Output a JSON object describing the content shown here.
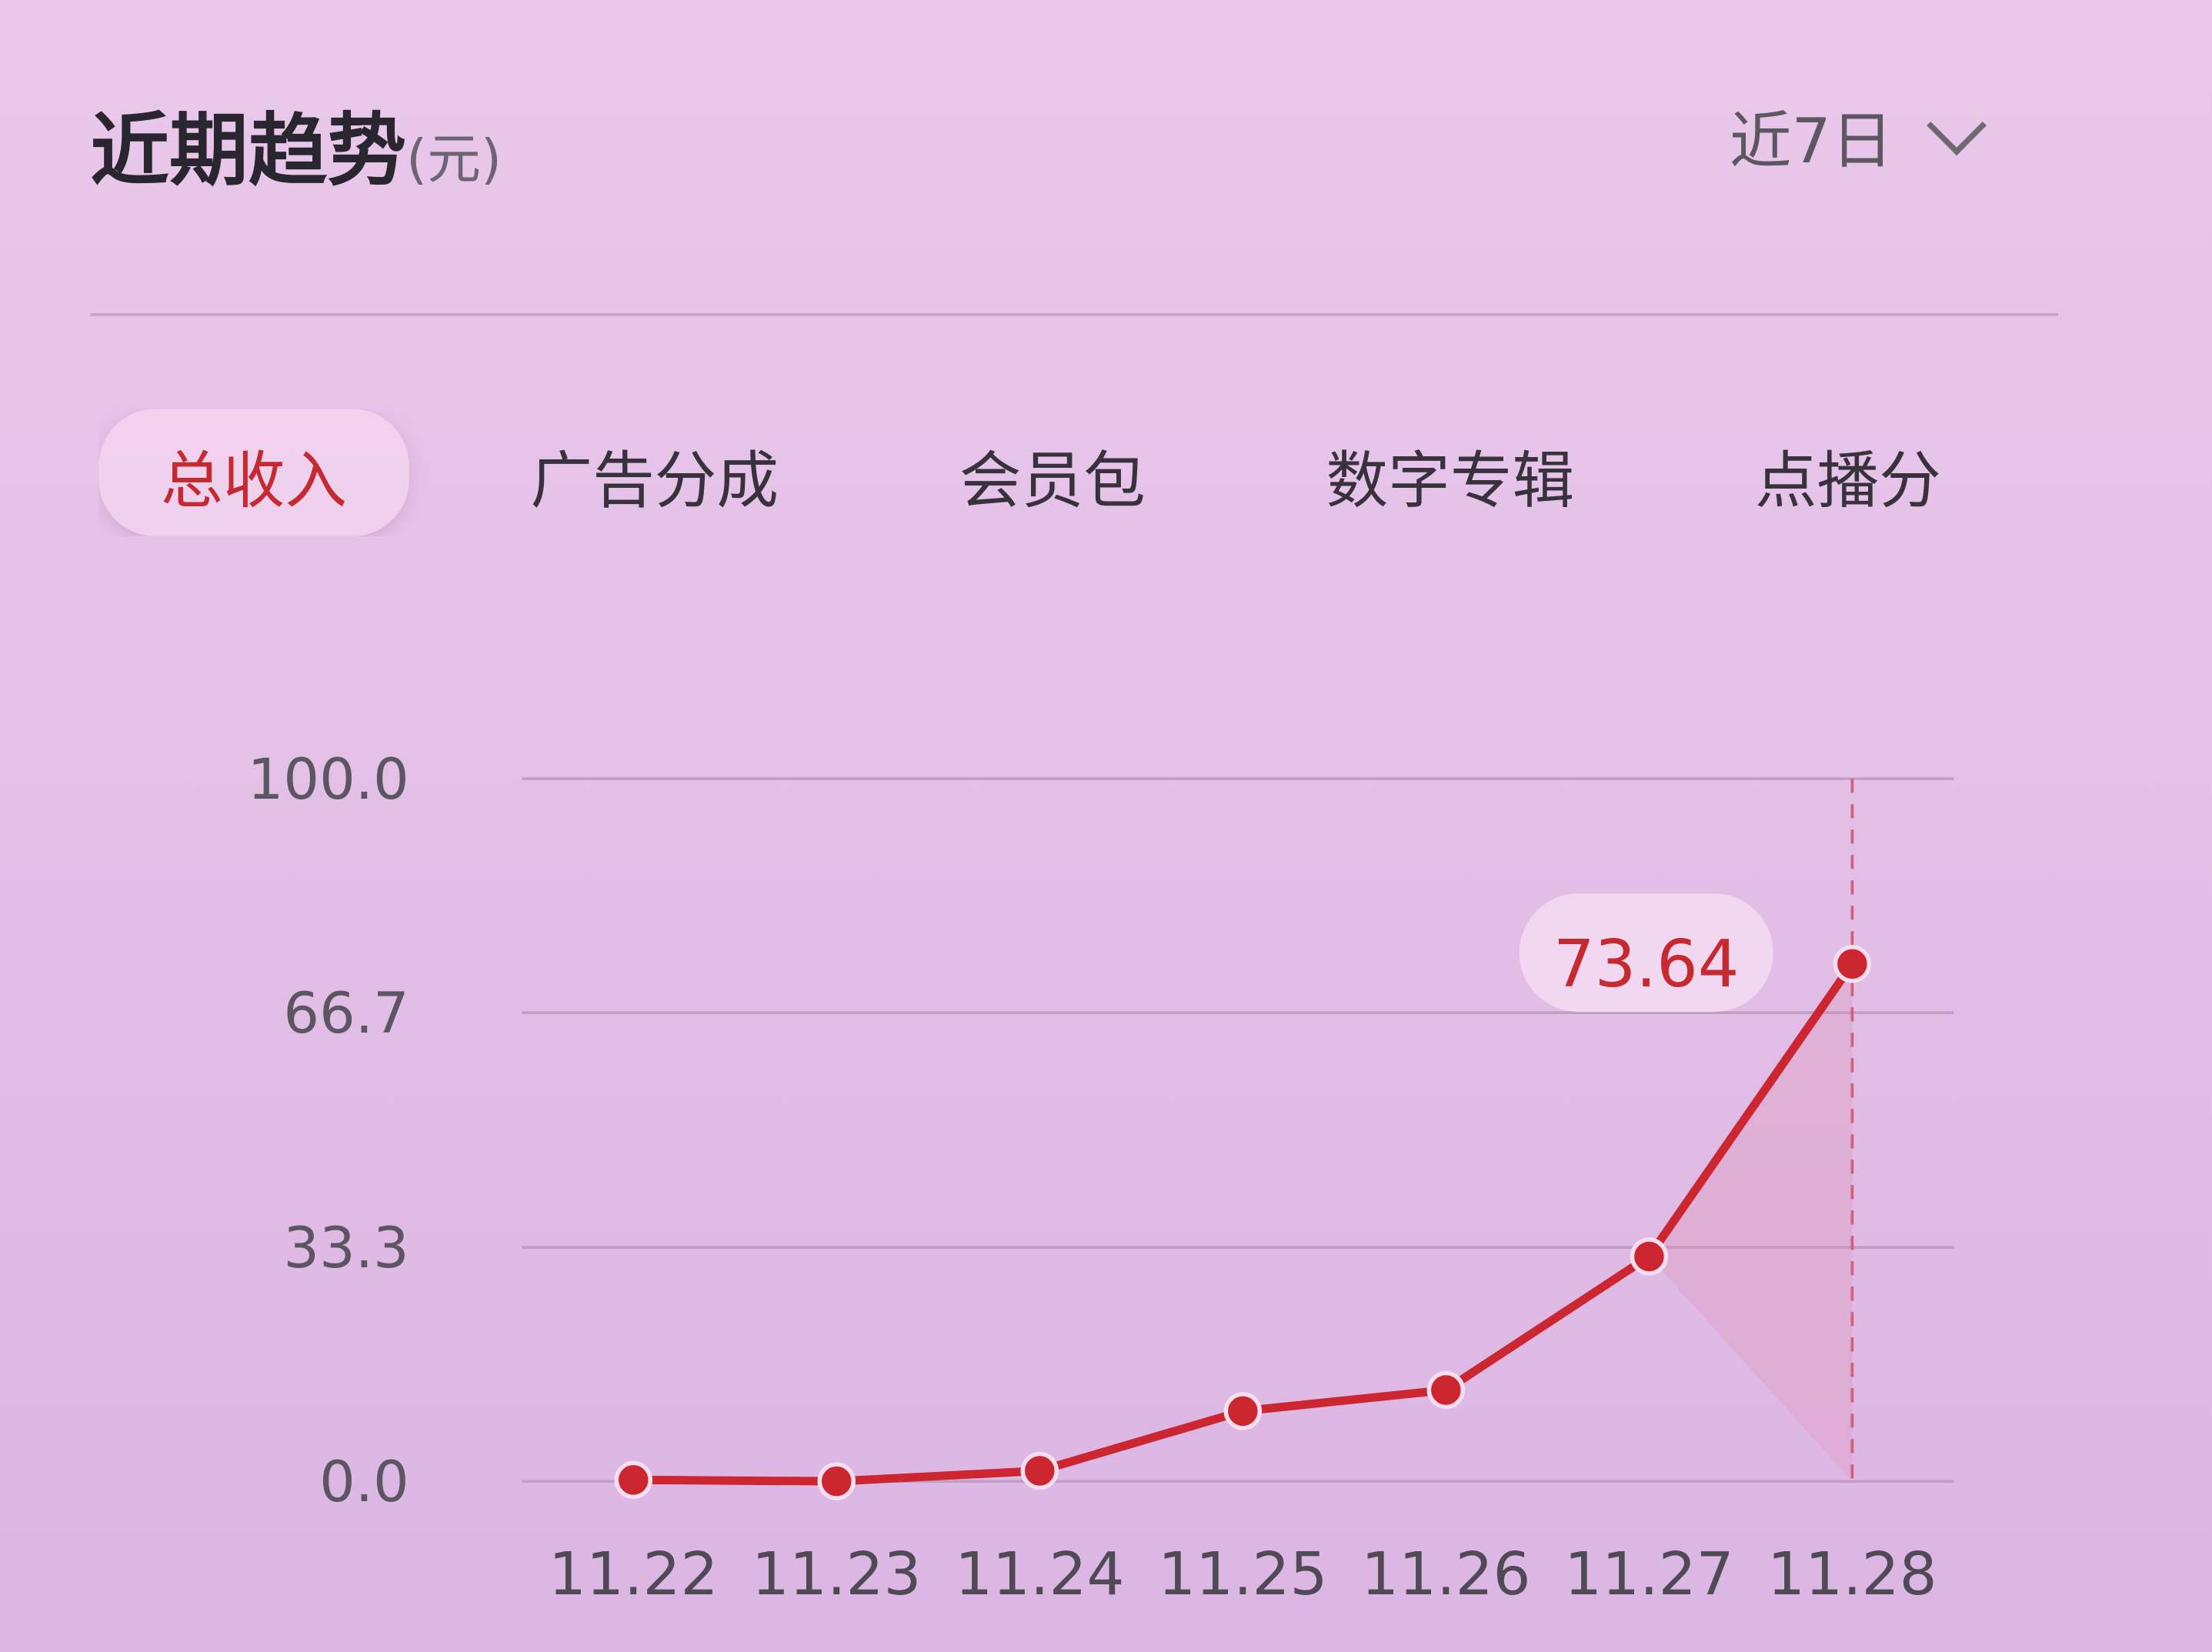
{
  "header": {
    "title": "近期趋势",
    "unit": "(元)",
    "range_label": "近7日"
  },
  "tabs": [
    {
      "label": "总收入",
      "active": true
    },
    {
      "label": "广告分成"
    },
    {
      "label": "会员包"
    },
    {
      "label": "数字专辑"
    },
    {
      "label": "点播分"
    }
  ],
  "chart_data": {
    "type": "line",
    "categories": [
      "11.22",
      "11.23",
      "11.24",
      "11.25",
      "11.26",
      "11.27",
      "11.28"
    ],
    "series": [
      {
        "values": [
          0.2,
          0,
          1.5,
          10,
          13,
          32,
          73.64
        ]
      }
    ],
    "ylim": [
      0,
      100
    ],
    "yticks": [
      "0.0",
      "33.3",
      "66.7",
      "100.0"
    ],
    "grid": true,
    "highlight": {
      "index": 6,
      "label": "73.64"
    },
    "colors": {
      "line": "#cc2630",
      "grid": "#bfa0c4"
    }
  }
}
